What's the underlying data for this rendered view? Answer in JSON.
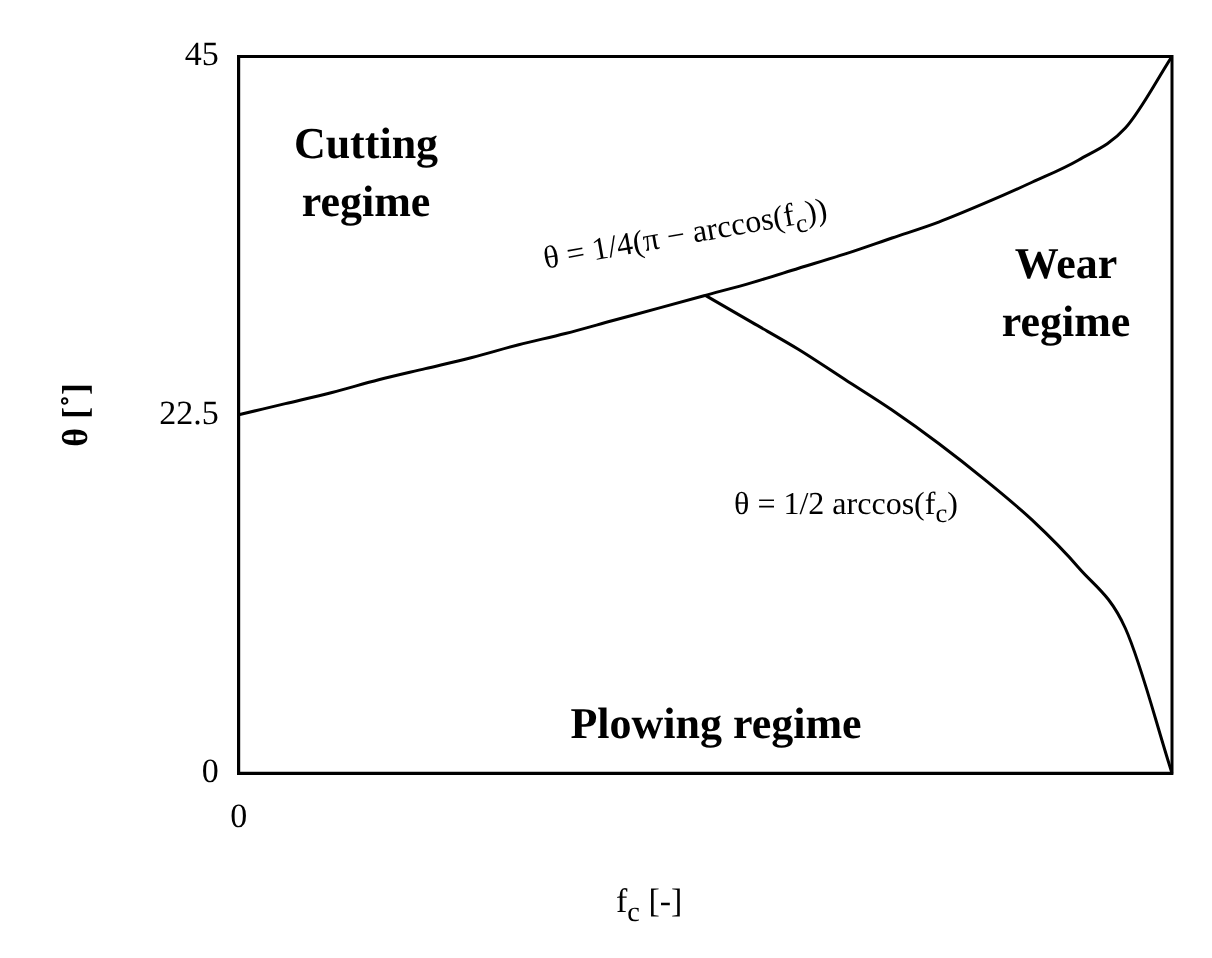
{
  "chart_data": {
    "type": "line",
    "xlabel": "f$_{c}$ [-]",
    "ylabel": "θ [˚]",
    "categories": [
      "0",
      null,
      null,
      null,
      null,
      null,
      null,
      null,
      null,
      null,
      null,
      null,
      null,
      null,
      null,
      null,
      null,
      null,
      null,
      null,
      null
    ],
    "series": [
      {
        "color": "#000000",
        "values": [
          22.5,
          23.2,
          23.9,
          24.7,
          25.4,
          26.1,
          26.9,
          27.6,
          28.4,
          29.2,
          30,
          30.8,
          31.7,
          32.6,
          33.6,
          34.6,
          35.8,
          37.1,
          38.5,
          40.5,
          45
        ]
      },
      {
        "color": "#000000",
        "values": [
          null,
          null,
          null,
          null,
          null,
          null,
          null,
          null,
          null,
          null,
          30,
          28.3,
          26.6,
          24.7,
          22.8,
          20.7,
          18.4,
          15.9,
          12.9,
          9.1,
          0
        ]
      }
    ],
    "ylim": [
      0,
      45
    ],
    "yticks": [
      0,
      22.5,
      45
    ],
    "grid": false,
    "legend": false,
    "marker": "none",
    "line_style": "solid",
    "annotations": [
      "Cutting regime",
      "Wear regime",
      "Plowing regime",
      "θ = 1/4(π − arccos(f$_{c}$))",
      "θ = 1/2 arccos(f$_{c}$)"
    ]
  }
}
